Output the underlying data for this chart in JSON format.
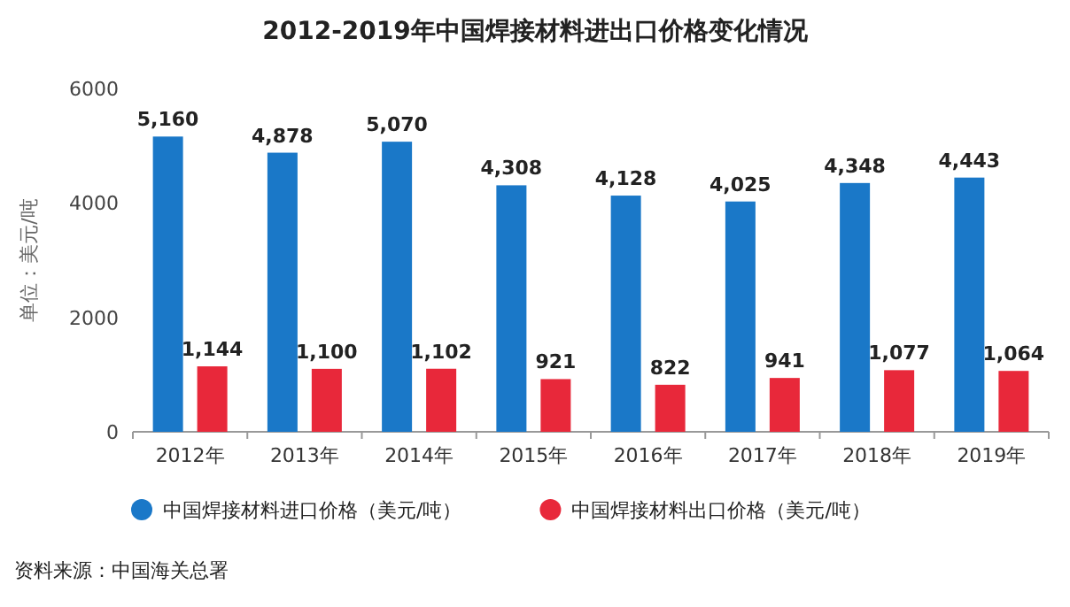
{
  "chart_data": {
    "type": "bar",
    "title": "2012-2019年中国焊接材料进出口价格变化情况",
    "categories": [
      "2012年",
      "2013年",
      "2014年",
      "2015年",
      "2016年",
      "2017年",
      "2018年",
      "2019年"
    ],
    "series": [
      {
        "name": "中国焊接材料进口价格（美元/吨）",
        "color": "#1a78c8",
        "values": [
          5160,
          4878,
          5070,
          4308,
          4128,
          4025,
          4348,
          4443
        ],
        "value_labels": [
          "5,160",
          "4,878",
          "5,070",
          "4,308",
          "4,128",
          "4,025",
          "4,348",
          "4,443"
        ]
      },
      {
        "name": "中国焊接材料出口价格（美元/吨）",
        "color": "#e8283a",
        "values": [
          1144,
          1100,
          1102,
          921,
          822,
          941,
          1077,
          1064
        ],
        "value_labels": [
          "1,144",
          "1,100",
          "1,102",
          "921",
          "822",
          "941",
          "1,077",
          "1,064"
        ]
      }
    ],
    "ylabel": "单位：美元/吨",
    "ylim": [
      0,
      6000
    ],
    "yticks": [
      0,
      2000,
      4000,
      6000
    ],
    "legend": "bottom",
    "grid": false,
    "annotations": [
      "资料来源：中国海关总署"
    ]
  }
}
